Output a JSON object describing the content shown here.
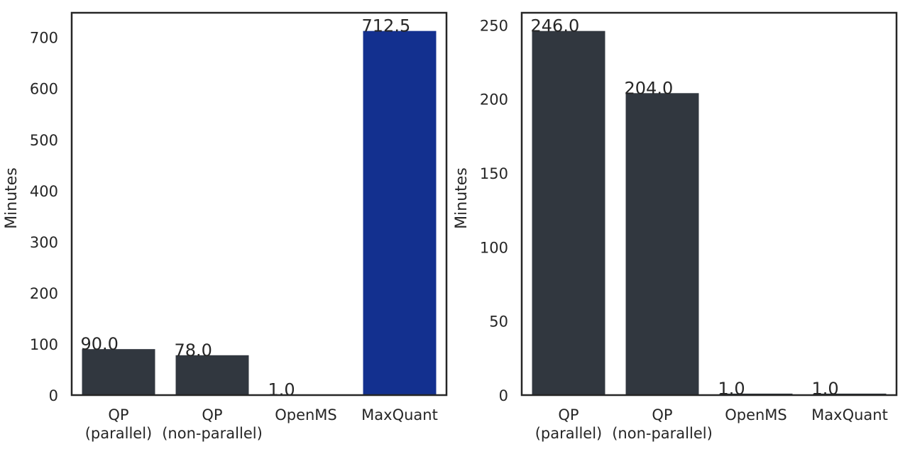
{
  "colors": {
    "default_bar": "#31373f",
    "highlight_bar": "#13308f",
    "text": "#262626",
    "frame": "#262626"
  },
  "chart_data": [
    {
      "type": "bar",
      "categories": [
        [
          "QP",
          "(parallel)"
        ],
        [
          "QP",
          "(non-parallel)"
        ],
        [
          "OpenMS"
        ],
        [
          "MaxQuant"
        ]
      ],
      "values": [
        90.0,
        78.0,
        1.0,
        712.5
      ],
      "bar_labels": [
        "90.0",
        "78.0",
        "1.0",
        "712.5"
      ],
      "bar_colors": [
        "#31373f",
        "#31373f",
        "#31373f",
        "#13308f"
      ],
      "xlabel": "",
      "ylabel": "Minutes",
      "ylim": [
        0,
        748.1
      ],
      "yticks": [
        0,
        100,
        200,
        300,
        400,
        500,
        600,
        700
      ],
      "grid": false
    },
    {
      "type": "bar",
      "categories": [
        [
          "QP",
          "(parallel)"
        ],
        [
          "QP",
          "(non-parallel)"
        ],
        [
          "OpenMS"
        ],
        [
          "MaxQuant"
        ]
      ],
      "values": [
        246.0,
        204.0,
        1.0,
        1.0
      ],
      "bar_labels": [
        "246.0",
        "204.0",
        "1.0",
        "1.0"
      ],
      "bar_colors": [
        "#31373f",
        "#31373f",
        "#31373f",
        "#31373f"
      ],
      "xlabel": "",
      "ylabel": "Minutes",
      "ylim": [
        0,
        258.3
      ],
      "yticks": [
        0,
        50,
        100,
        150,
        200,
        250
      ],
      "grid": false
    }
  ]
}
